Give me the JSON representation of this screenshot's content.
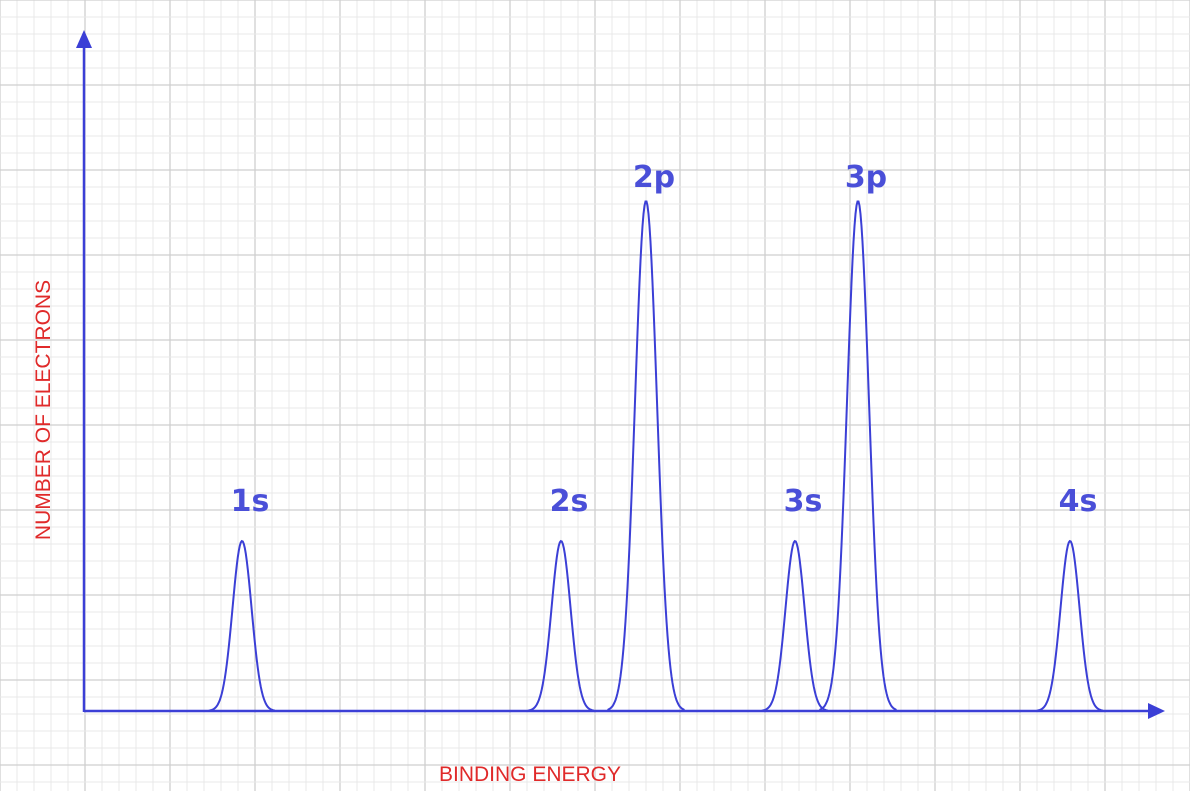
{
  "chart_data": {
    "type": "line",
    "title": "",
    "xlabel": "BINDING ENERGY",
    "ylabel": "NUMBER OF ELECTRONS",
    "grid": true,
    "x_ticks_labeled": false,
    "y_ticks_labeled": false,
    "ylim": [
      0,
      6
    ],
    "peaks": [
      {
        "label": "1s",
        "x": 1,
        "height": 2
      },
      {
        "label": "2s",
        "x": 2,
        "height": 2
      },
      {
        "label": "2p",
        "x": 3,
        "height": 6
      },
      {
        "label": "3s",
        "x": 4,
        "height": 2
      },
      {
        "label": "3p",
        "x": 5,
        "height": 6
      },
      {
        "label": "4s",
        "x": 6,
        "height": 2
      }
    ]
  },
  "colors": {
    "line": "#3b3fd6",
    "label": "#4a4fd8",
    "axis_text": "#e02a2a",
    "grid_minor": "#e8e8e8",
    "grid_major": "#cfcfcf"
  }
}
